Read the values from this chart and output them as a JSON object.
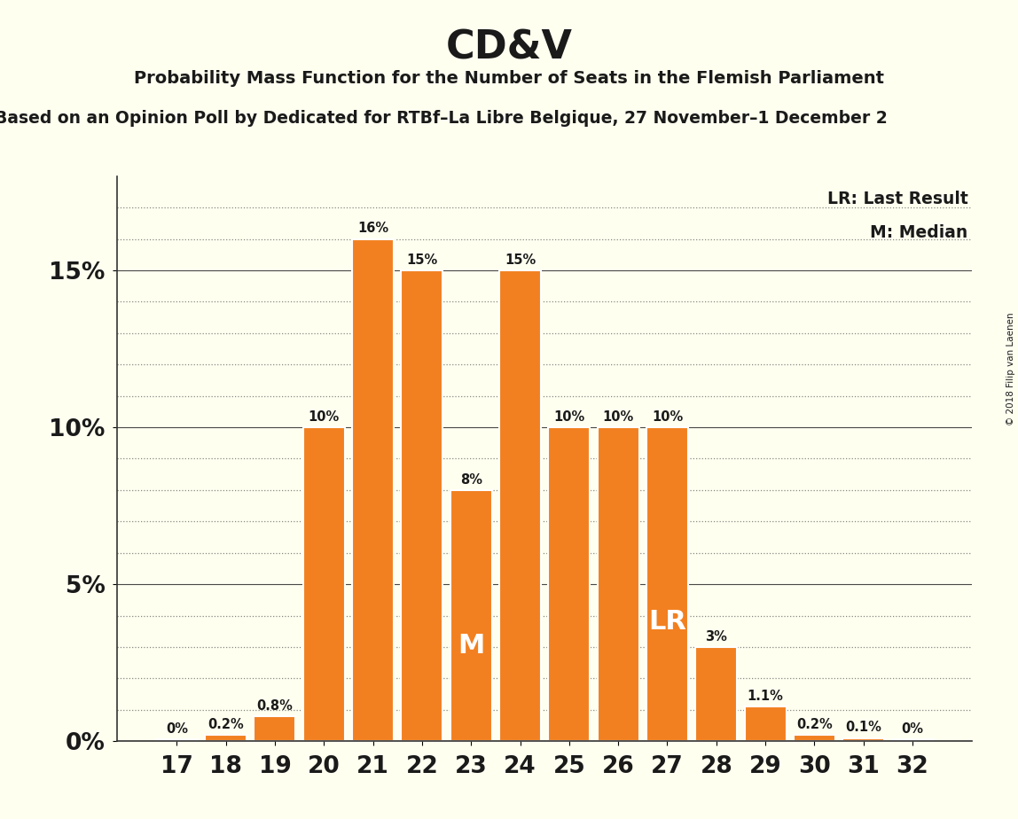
{
  "title": "CD&V",
  "subtitle": "Probability Mass Function for the Number of Seats in the Flemish Parliament",
  "subtitle2": "Based on an Opinion Poll by Dedicated for RTBf–La Libre Belgique, 27 November–1 December 2",
  "copyright": "© 2018 Filip van Laenen",
  "categories": [
    17,
    18,
    19,
    20,
    21,
    22,
    23,
    24,
    25,
    26,
    27,
    28,
    29,
    30,
    31,
    32
  ],
  "values": [
    0.05,
    0.2,
    0.8,
    10.0,
    16.0,
    15.0,
    8.0,
    15.0,
    10.0,
    10.0,
    10.0,
    3.0,
    1.1,
    0.2,
    0.1,
    0.05
  ],
  "bar_color": "#F28020",
  "bar_edge_color": "#FFFFFF",
  "background_color": "#FFFFF0",
  "text_color": "#1A1A1A",
  "median_seat": 23,
  "last_result_seat": 27,
  "yticks": [
    0,
    5,
    10,
    15
  ],
  "ylim": [
    0,
    18
  ],
  "legend_lr": "LR: Last Result",
  "legend_m": "M: Median",
  "bar_labels": [
    "0%",
    "0.2%",
    "0.8%",
    "10%",
    "16%",
    "15%",
    "8%",
    "15%",
    "10%",
    "10%",
    "10%",
    "3%",
    "1.1%",
    "0.2%",
    "0.1%",
    "0%"
  ],
  "minor_yticks": [
    1,
    2,
    3,
    4,
    6,
    7,
    8,
    9,
    11,
    12,
    13,
    14,
    16,
    17
  ]
}
